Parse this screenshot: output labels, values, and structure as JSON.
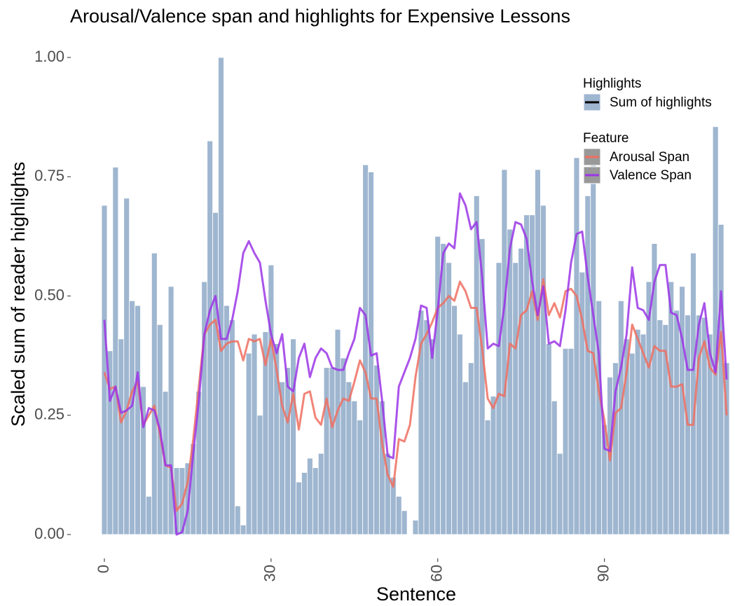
{
  "chart_data": {
    "type": "bar_line",
    "title": "Arousal/Valence span and highlights for Expensive Lessons",
    "x_label": "Sentence",
    "y_label": "Scaled sum of reader highlights",
    "legend_titles": [
      "Highlights",
      "Feature"
    ],
    "legend_position": "top-right",
    "grid": false,
    "x": [
      0,
      1,
      2,
      3,
      4,
      5,
      6,
      7,
      8,
      9,
      10,
      11,
      12,
      13,
      14,
      15,
      16,
      17,
      18,
      19,
      20,
      21,
      22,
      23,
      24,
      25,
      26,
      27,
      28,
      29,
      30,
      31,
      32,
      33,
      34,
      35,
      36,
      37,
      38,
      39,
      40,
      41,
      42,
      43,
      44,
      45,
      46,
      47,
      48,
      49,
      50,
      51,
      52,
      53,
      54,
      55,
      56,
      57,
      58,
      59,
      60,
      61,
      62,
      63,
      64,
      65,
      66,
      67,
      68,
      69,
      70,
      71,
      72,
      73,
      74,
      75,
      76,
      77,
      78,
      79,
      80,
      81,
      82,
      83,
      84,
      85,
      86,
      87,
      88,
      89,
      90,
      91,
      92,
      93,
      94,
      95,
      96,
      97,
      98,
      99,
      100,
      101,
      102,
      103,
      104,
      105,
      106,
      107,
      108,
      109,
      110,
      111,
      112
    ],
    "xlim": [
      -0.5,
      112.5
    ],
    "xticks": [
      0,
      30,
      60,
      90
    ],
    "ylim": [
      -0.05,
      1.05
    ],
    "yticks": [
      {
        "value": 0,
        "label": "0.00"
      },
      {
        "value": 0.25,
        "label": "0.25"
      },
      {
        "value": 0.5,
        "label": "0.50"
      },
      {
        "value": 0.75,
        "label": "0.75"
      },
      {
        "value": 1,
        "label": "1.00"
      }
    ],
    "series": [
      {
        "name": "Sum of highlights",
        "type": "bar",
        "legend": 0,
        "color": "#9fb6d0",
        "values": [
          0.69,
          0.385,
          0.77,
          0.41,
          0.705,
          0.49,
          0.48,
          0.31,
          0.08,
          0.59,
          0.44,
          0.3,
          0.52,
          0.14,
          0.14,
          0.15,
          0.19,
          0.3,
          0.53,
          0.825,
          0.675,
          1.0,
          0.48,
          0.45,
          0.06,
          0.02,
          0.38,
          0.42,
          0.25,
          0.425,
          0.565,
          0.4,
          0.32,
          0.35,
          0.41,
          0.11,
          0.13,
          0.16,
          0.14,
          0.17,
          0.35,
          0.35,
          0.43,
          0.37,
          0.32,
          0.28,
          0.24,
          0.775,
          0.76,
          0.355,
          0.28,
          0.17,
          0.12,
          0.08,
          0.05,
          0,
          0.03,
          0.47,
          0.45,
          0.41,
          0.625,
          0.61,
          0.57,
          0.48,
          0.42,
          0.32,
          0.36,
          0.71,
          0.62,
          0.24,
          0.29,
          0.57,
          0.765,
          0.64,
          0.57,
          0.6,
          0.67,
          0.67,
          0.765,
          0.69,
          0.4,
          0.28,
          0.17,
          0.39,
          0.39,
          0.79,
          0.55,
          0.71,
          0.8,
          0.49,
          0.23,
          0.33,
          0.36,
          0.49,
          0.41,
          0.38,
          0.43,
          0.42,
          0.53,
          0.61,
          0.45,
          0.44,
          0.53,
          0.47,
          0.52,
          0.46,
          0.59,
          0.46,
          0.455,
          0.42,
          0.855,
          0.65,
          0.36
        ]
      },
      {
        "name": "Arousal Span",
        "type": "line",
        "legend": 1,
        "color": "#ef6f60",
        "values": [
          0.34,
          0.305,
          0.31,
          0.235,
          0.26,
          0.3,
          0.32,
          0.23,
          0.25,
          0.27,
          0.21,
          0.145,
          0.14,
          0.05,
          0.065,
          0.11,
          0.2,
          0.31,
          0.42,
          0.44,
          0.45,
          0.385,
          0.4,
          0.405,
          0.405,
          0.365,
          0.41,
          0.405,
          0.41,
          0.355,
          0.41,
          0.345,
          0.27,
          0.235,
          0.295,
          0.22,
          0.295,
          0.3,
          0.245,
          0.23,
          0.285,
          0.225,
          0.26,
          0.285,
          0.28,
          0.32,
          0.365,
          0.34,
          0.285,
          0.285,
          0.19,
          0.125,
          0.1,
          0.2,
          0.195,
          0.23,
          0.33,
          0.4,
          0.42,
          0.445,
          0.475,
          0.485,
          0.5,
          0.49,
          0.53,
          0.51,
          0.475,
          0.475,
          0.39,
          0.285,
          0.265,
          0.295,
          0.29,
          0.4,
          0.39,
          0.46,
          0.47,
          0.51,
          0.45,
          0.535,
          0.46,
          0.485,
          0.455,
          0.51,
          0.515,
          0.5,
          0.45,
          0.385,
          0.38,
          0.3,
          0.24,
          0.155,
          0.255,
          0.265,
          0.34,
          0.44,
          0.41,
          0.38,
          0.35,
          0.395,
          0.385,
          0.385,
          0.31,
          0.31,
          0.315,
          0.23,
          0.23,
          0.37,
          0.405,
          0.35,
          0.335,
          0.425,
          0.25
        ]
      },
      {
        "name": "Valence Span",
        "type": "line",
        "legend": 1,
        "color": "#9b35e6",
        "values": [
          0.45,
          0.28,
          0.31,
          0.255,
          0.26,
          0.27,
          0.34,
          0.225,
          0.265,
          0.26,
          0.22,
          0.145,
          0.145,
          0.0,
          0.005,
          0.05,
          0.17,
          0.28,
          0.42,
          0.47,
          0.5,
          0.41,
          0.41,
          0.45,
          0.51,
          0.59,
          0.615,
          0.59,
          0.57,
          0.49,
          0.42,
          0.38,
          0.42,
          0.31,
          0.3,
          0.37,
          0.4,
          0.33,
          0.37,
          0.39,
          0.38,
          0.35,
          0.345,
          0.345,
          0.38,
          0.41,
          0.475,
          0.46,
          0.375,
          0.38,
          0.28,
          0.165,
          0.16,
          0.31,
          0.34,
          0.37,
          0.41,
          0.48,
          0.475,
          0.37,
          0.47,
          0.59,
          0.61,
          0.6,
          0.715,
          0.69,
          0.64,
          0.655,
          0.54,
          0.39,
          0.4,
          0.395,
          0.48,
          0.6,
          0.655,
          0.65,
          0.62,
          0.53,
          0.46,
          0.52,
          0.4,
          0.405,
          0.395,
          0.47,
          0.57,
          0.63,
          0.635,
          0.54,
          0.46,
          0.38,
          0.18,
          0.175,
          0.3,
          0.35,
          0.42,
          0.56,
          0.475,
          0.47,
          0.45,
          0.53,
          0.565,
          0.565,
          0.465,
          0.46,
          0.41,
          0.345,
          0.345,
          0.44,
          0.485,
          0.38,
          0.34,
          0.51,
          0.325
        ]
      }
    ]
  }
}
